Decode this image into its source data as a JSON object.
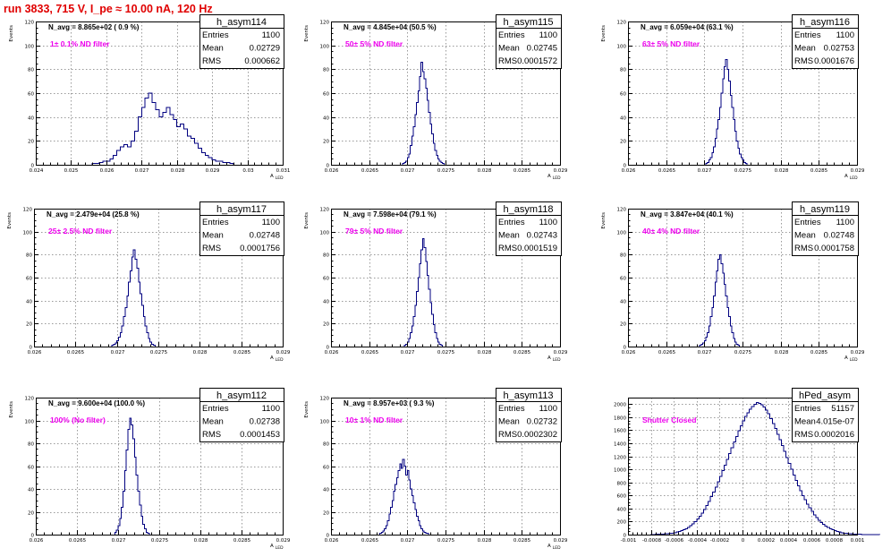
{
  "header": {
    "run_title": "run 3833,   715 V, I_pe ≈ 10.00 nA, 120 Hz"
  },
  "colors": {
    "title": "#e00000",
    "histogram": "#000080",
    "filter_label": "#ee00ee"
  },
  "chart_data": [
    {
      "type": "histogram",
      "name": "h_asym114",
      "navg": "N_avg = 8.865e+02 ( 0.9 %)",
      "filter": "1± 0.1% ND filter",
      "stats": {
        "entries_label": "Entries",
        "entries": "1100",
        "mean_label": "Mean",
        "mean": "0.02729",
        "rms_label": "RMS",
        "rms": "0.000662"
      },
      "ylabel": "Events",
      "xlabel": "A",
      "xlabel_sub": "LED",
      "xlim": [
        0.024,
        0.031
      ],
      "ylim": [
        0,
        120
      ],
      "xticks": [
        {
          "v": 0.024,
          "t": "0.024"
        },
        {
          "v": 0.025,
          "t": "0.025"
        },
        {
          "v": 0.026,
          "t": "0.026"
        },
        {
          "v": 0.027,
          "t": "0.027"
        },
        {
          "v": 0.028,
          "t": "0.028"
        },
        {
          "v": 0.029,
          "t": "0.029"
        },
        {
          "v": 0.03,
          "t": "0.03"
        },
        {
          "v": 0.031,
          "t": "0.031"
        }
      ],
      "yticks": [
        0,
        20,
        40,
        60,
        80,
        100,
        120
      ],
      "bin_start": 0.0256,
      "bin_width": 0.0001,
      "counts": [
        1,
        1,
        2,
        3,
        3,
        5,
        8,
        12,
        15,
        17,
        15,
        20,
        28,
        40,
        48,
        56,
        60,
        52,
        46,
        40,
        44,
        48,
        42,
        38,
        32,
        34,
        30,
        24,
        22,
        18,
        14,
        10,
        8,
        6,
        4,
        3,
        3,
        2,
        2,
        1
      ]
    },
    {
      "type": "histogram",
      "name": "h_asym115",
      "navg": "N_avg = 4.845e+04 (50.5 %)",
      "filter": "50± 5% ND filter",
      "stats": {
        "entries_label": "Entries",
        "entries": "1100",
        "mean_label": "Mean",
        "mean": "0.02745",
        "rms_label": "RMS",
        "rms": "0.0001572"
      },
      "ylabel": "Events",
      "xlabel": "A",
      "xlabel_sub": "LED",
      "xlim": [
        0.026,
        0.029
      ],
      "ylim": [
        0,
        120
      ],
      "xticks": [
        {
          "v": 0.026,
          "t": "0.026"
        },
        {
          "v": 0.0265,
          "t": "0.0265"
        },
        {
          "v": 0.027,
          "t": "0.027"
        },
        {
          "v": 0.0275,
          "t": "0.0275"
        },
        {
          "v": 0.028,
          "t": "0.028"
        },
        {
          "v": 0.0285,
          "t": "0.0285"
        },
        {
          "v": 0.029,
          "t": "0.029"
        }
      ],
      "yticks": [
        0,
        20,
        40,
        60,
        80,
        100,
        120
      ],
      "bin_start": 0.02694,
      "bin_width": 2e-05,
      "counts": [
        1,
        2,
        3,
        6,
        9,
        16,
        24,
        32,
        42,
        52,
        62,
        74,
        86,
        78,
        72,
        64,
        54,
        44,
        34,
        26,
        18,
        12,
        8,
        5,
        3,
        2,
        1
      ]
    },
    {
      "type": "histogram",
      "name": "h_asym116",
      "navg": "N_avg = 6.059e+04 (63.1 %)",
      "filter": "63± 5% ND filter",
      "stats": {
        "entries_label": "Entries",
        "entries": "1100",
        "mean_label": "Mean",
        "mean": "0.02753",
        "rms_label": "RMS",
        "rms": "0.0001676"
      },
      "ylabel": "Events",
      "xlabel": "A",
      "xlabel_sub": "LED",
      "xlim": [
        0.026,
        0.029
      ],
      "ylim": [
        0,
        120
      ],
      "xticks": [
        {
          "v": 0.026,
          "t": "0.026"
        },
        {
          "v": 0.0265,
          "t": "0.0265"
        },
        {
          "v": 0.027,
          "t": "0.027"
        },
        {
          "v": 0.0275,
          "t": "0.0275"
        },
        {
          "v": 0.028,
          "t": "0.028"
        },
        {
          "v": 0.0285,
          "t": "0.0285"
        },
        {
          "v": 0.029,
          "t": "0.029"
        }
      ],
      "yticks": [
        0,
        20,
        40,
        60,
        80,
        100,
        120
      ],
      "bin_start": 0.02702,
      "bin_width": 2e-05,
      "counts": [
        1,
        2,
        4,
        6,
        10,
        15,
        22,
        30,
        38,
        48,
        60,
        72,
        82,
        88,
        80,
        70,
        58,
        48,
        38,
        28,
        20,
        14,
        9,
        6,
        4,
        2,
        1
      ]
    },
    {
      "type": "histogram",
      "name": "h_asym117",
      "navg": "N_avg = 2.479e+04 (25.8 %)",
      "filter": "25± 2.5% ND filter",
      "stats": {
        "entries_label": "Entries",
        "entries": "1100",
        "mean_label": "Mean",
        "mean": "0.02748",
        "rms_label": "RMS",
        "rms": "0.0001756"
      },
      "ylabel": "Events",
      "xlabel": "A",
      "xlabel_sub": "LED",
      "xlim": [
        0.026,
        0.029
      ],
      "ylim": [
        0,
        120
      ],
      "xticks": [
        {
          "v": 0.026,
          "t": "0.026"
        },
        {
          "v": 0.0265,
          "t": "0.0265"
        },
        {
          "v": 0.027,
          "t": "0.027"
        },
        {
          "v": 0.0275,
          "t": "0.0275"
        },
        {
          "v": 0.028,
          "t": "0.028"
        },
        {
          "v": 0.0285,
          "t": "0.0285"
        },
        {
          "v": 0.029,
          "t": "0.029"
        }
      ],
      "yticks": [
        0,
        20,
        40,
        60,
        80,
        100,
        120
      ],
      "bin_start": 0.02694,
      "bin_width": 2e-05,
      "counts": [
        1,
        2,
        3,
        5,
        8,
        12,
        18,
        26,
        34,
        44,
        56,
        66,
        78,
        84,
        76,
        68,
        56,
        46,
        36,
        26,
        18,
        12,
        7,
        4,
        2,
        1
      ]
    },
    {
      "type": "histogram",
      "name": "h_asym118",
      "navg": "N_avg = 7.598e+04 (79.1 %)",
      "filter": "79± 5% ND filter",
      "stats": {
        "entries_label": "Entries",
        "entries": "1100",
        "mean_label": "Mean",
        "mean": "0.02743",
        "rms_label": "RMS",
        "rms": "0.0001519"
      },
      "ylabel": "Events",
      "xlabel": "A",
      "xlabel_sub": "LED",
      "xlim": [
        0.026,
        0.029
      ],
      "ylim": [
        0,
        120
      ],
      "xticks": [
        {
          "v": 0.026,
          "t": "0.026"
        },
        {
          "v": 0.0265,
          "t": "0.0265"
        },
        {
          "v": 0.027,
          "t": "0.027"
        },
        {
          "v": 0.0275,
          "t": "0.0275"
        },
        {
          "v": 0.028,
          "t": "0.028"
        },
        {
          "v": 0.0285,
          "t": "0.0285"
        },
        {
          "v": 0.029,
          "t": "0.029"
        }
      ],
      "yticks": [
        0,
        20,
        40,
        60,
        80,
        100,
        120
      ],
      "bin_start": 0.02696,
      "bin_width": 2e-05,
      "counts": [
        1,
        2,
        4,
        7,
        12,
        18,
        26,
        36,
        48,
        60,
        72,
        84,
        94,
        86,
        74,
        62,
        50,
        38,
        28,
        19,
        12,
        7,
        4,
        2,
        1
      ]
    },
    {
      "type": "histogram",
      "name": "h_asym119",
      "navg": "N_avg = 3.847e+04 (40.1 %)",
      "filter": "40± 4% ND filter",
      "stats": {
        "entries_label": "Entries",
        "entries": "1100",
        "mean_label": "Mean",
        "mean": "0.02748",
        "rms_label": "RMS",
        "rms": "0.0001758"
      },
      "ylabel": "Events",
      "xlabel": "A",
      "xlabel_sub": "LED",
      "xlim": [
        0.026,
        0.029
      ],
      "ylim": [
        0,
        120
      ],
      "xticks": [
        {
          "v": 0.026,
          "t": "0.026"
        },
        {
          "v": 0.0265,
          "t": "0.0265"
        },
        {
          "v": 0.027,
          "t": "0.027"
        },
        {
          "v": 0.0275,
          "t": "0.0275"
        },
        {
          "v": 0.028,
          "t": "0.028"
        },
        {
          "v": 0.0285,
          "t": "0.0285"
        },
        {
          "v": 0.029,
          "t": "0.029"
        }
      ],
      "yticks": [
        0,
        20,
        40,
        60,
        80,
        100,
        120
      ],
      "bin_start": 0.02694,
      "bin_width": 2e-05,
      "counts": [
        1,
        2,
        3,
        5,
        8,
        12,
        18,
        26,
        34,
        44,
        56,
        66,
        76,
        80,
        72,
        64,
        54,
        44,
        34,
        26,
        18,
        12,
        7,
        4,
        2,
        1
      ]
    },
    {
      "type": "histogram",
      "name": "h_asym112",
      "navg": "N_avg = 9.600e+04 (100.0 %)",
      "filter": "100% (No filter)",
      "stats": {
        "entries_label": "Entries",
        "entries": "1100",
        "mean_label": "Mean",
        "mean": "0.02738",
        "rms_label": "RMS",
        "rms": "0.0001453"
      },
      "ylabel": "Events",
      "xlabel": "A",
      "xlabel_sub": "LED",
      "xlim": [
        0.026,
        0.029
      ],
      "ylim": [
        0,
        120
      ],
      "xticks": [
        {
          "v": 0.026,
          "t": "0.026"
        },
        {
          "v": 0.0265,
          "t": "0.0265"
        },
        {
          "v": 0.027,
          "t": "0.027"
        },
        {
          "v": 0.0275,
          "t": "0.0275"
        },
        {
          "v": 0.028,
          "t": "0.028"
        },
        {
          "v": 0.0285,
          "t": "0.0285"
        },
        {
          "v": 0.029,
          "t": "0.029"
        }
      ],
      "yticks": [
        0,
        20,
        40,
        60,
        80,
        100,
        120
      ],
      "bin_start": 0.02696,
      "bin_width": 2e-05,
      "counts": [
        2,
        4,
        8,
        14,
        24,
        38,
        56,
        74,
        92,
        102,
        96,
        84,
        68,
        52,
        38,
        26,
        16,
        9,
        5,
        2,
        1
      ]
    },
    {
      "type": "histogram",
      "name": "h_asym113",
      "navg": "N_avg = 8.957e+03 ( 9.3 %)",
      "filter": "10± 1% ND filter",
      "stats": {
        "entries_label": "Entries",
        "entries": "1100",
        "mean_label": "Mean",
        "mean": "0.02732",
        "rms_label": "RMS",
        "rms": "0.0002302"
      },
      "ylabel": "Events",
      "xlabel": "A",
      "xlabel_sub": "LED",
      "xlim": [
        0.026,
        0.029
      ],
      "ylim": [
        0,
        120
      ],
      "xticks": [
        {
          "v": 0.026,
          "t": "0.026"
        },
        {
          "v": 0.0265,
          "t": "0.0265"
        },
        {
          "v": 0.027,
          "t": "0.027"
        },
        {
          "v": 0.0275,
          "t": "0.0275"
        },
        {
          "v": 0.028,
          "t": "0.028"
        },
        {
          "v": 0.0285,
          "t": "0.0285"
        },
        {
          "v": 0.029,
          "t": "0.029"
        }
      ],
      "yticks": [
        0,
        20,
        40,
        60,
        80,
        100,
        120
      ],
      "bin_start": 0.02664,
      "bin_width": 2e-05,
      "counts": [
        1,
        2,
        3,
        5,
        8,
        12,
        18,
        24,
        30,
        38,
        44,
        50,
        56,
        62,
        58,
        66,
        60,
        52,
        56,
        48,
        40,
        34,
        28,
        22,
        16,
        12,
        8,
        5,
        3,
        2,
        1,
        1
      ]
    },
    {
      "type": "histogram",
      "name": "hPed_asym",
      "navg": "",
      "filter": "Shutter Closed",
      "stats": {
        "entries_label": "Entries",
        "entries": "51157",
        "mean_label": "Mean",
        "mean": "4.015e-07",
        "rms_label": "RMS",
        "rms": "0.0002016"
      },
      "ylabel": "",
      "xlabel": "",
      "xlabel_sub": "",
      "xlim": [
        -0.001,
        0.001
      ],
      "ylim": [
        0,
        2100
      ],
      "xticks": [
        {
          "v": -0.001,
          "t": "-0.001"
        },
        {
          "v": -0.0008,
          "t": "-0.0008"
        },
        {
          "v": -0.0006,
          "t": "-0.0006"
        },
        {
          "v": -0.0004,
          "t": "-0.0004"
        },
        {
          "v": -0.0002,
          "t": "-0.0002"
        },
        {
          "v": 0,
          "t": "0"
        },
        {
          "v": 0.0002,
          "t": "0.0002"
        },
        {
          "v": 0.0004,
          "t": "0.0004"
        },
        {
          "v": 0.0006,
          "t": "0.0006"
        },
        {
          "v": 0.0008,
          "t": "0.0008"
        },
        {
          "v": 0.001,
          "t": "0.001"
        }
      ],
      "yticks": [
        0,
        200,
        400,
        600,
        800,
        1000,
        1200,
        1400,
        1600,
        1800,
        2000
      ],
      "bin_start": -0.0008,
      "bin_width": 2e-05,
      "counts": [
        2,
        3,
        4,
        5,
        7,
        9,
        12,
        15,
        18,
        24,
        30,
        38,
        48,
        60,
        75,
        92,
        112,
        138,
        165,
        200,
        238,
        282,
        330,
        385,
        445,
        510,
        580,
        655,
        730,
        810,
        895,
        980,
        1065,
        1150,
        1240,
        1330,
        1420,
        1505,
        1590,
        1670,
        1745,
        1810,
        1870,
        1925,
        1965,
        2000,
        2025,
        2010,
        1990,
        1955,
        1905,
        1850,
        1780,
        1705,
        1625,
        1540,
        1455,
        1365,
        1275,
        1180,
        1090,
        1000,
        915,
        830,
        750,
        672,
        600,
        532,
        468,
        410,
        355,
        305,
        262,
        222,
        188,
        158,
        132,
        110,
        90,
        74,
        60,
        48,
        38,
        30,
        24,
        18,
        14,
        11,
        8,
        6,
        5,
        4,
        3,
        2,
        2,
        1,
        1,
        1,
        1,
        1
      ]
    }
  ]
}
